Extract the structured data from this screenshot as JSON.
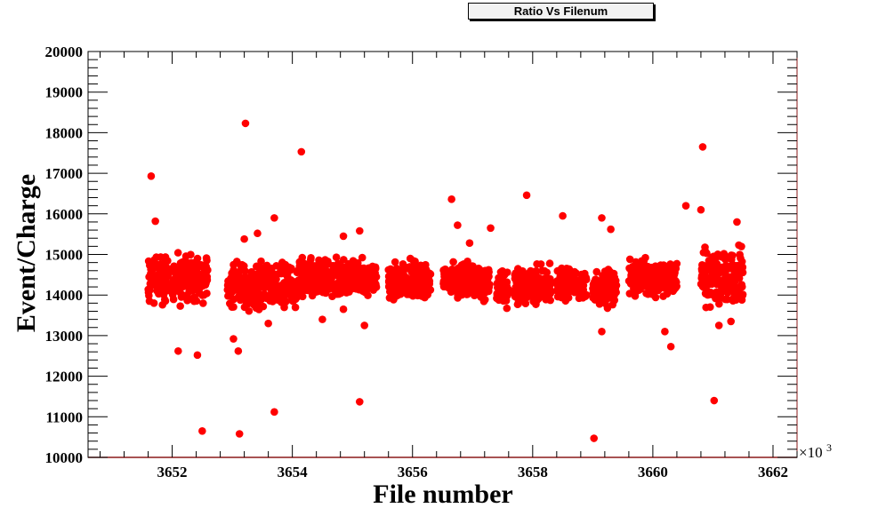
{
  "chart_data": {
    "type": "scatter",
    "title": "Ratio Vs Filenum",
    "xlabel": "File number",
    "ylabel": "Event/Charge",
    "x_multiplier_label": "×10",
    "x_multiplier_exponent": "3",
    "xlim": [
      3650.6,
      3662.4
    ],
    "ylim": [
      10000,
      20000
    ],
    "x_ticks": [
      3652,
      3654,
      3656,
      3658,
      3660,
      3662
    ],
    "x_tick_labels": [
      "3652",
      "3654",
      "3656",
      "3658",
      "3660",
      "3662"
    ],
    "y_ticks": [
      10000,
      11000,
      12000,
      13000,
      14000,
      15000,
      16000,
      17000,
      18000,
      19000,
      20000
    ],
    "y_tick_labels": [
      "10000",
      "11000",
      "12000",
      "13000",
      "14000",
      "15000",
      "16000",
      "17000",
      "18000",
      "19000",
      "20000"
    ],
    "marker_color": "#ff0000",
    "bulk_clusters": [
      {
        "x_range": [
          3651.6,
          3652.6
        ],
        "y_range": [
          13600,
          15200
        ]
      },
      {
        "x_range": [
          3652.9,
          3653.6
        ],
        "y_range": [
          13500,
          15000
        ]
      },
      {
        "x_range": [
          3653.6,
          3654.1
        ],
        "y_range": [
          13500,
          14900
        ]
      },
      {
        "x_range": [
          3654.1,
          3654.9
        ],
        "y_range": [
          13700,
          15100
        ]
      },
      {
        "x_range": [
          3654.9,
          3655.4
        ],
        "y_range": [
          13800,
          15000
        ]
      },
      {
        "x_range": [
          3655.6,
          3656.3
        ],
        "y_range": [
          13700,
          15000
        ]
      },
      {
        "x_range": [
          3656.5,
          3657.3
        ],
        "y_range": [
          13700,
          15000
        ]
      },
      {
        "x_range": [
          3657.4,
          3657.6
        ],
        "y_range": [
          13600,
          14700
        ]
      },
      {
        "x_range": [
          3657.7,
          3658.3
        ],
        "y_range": [
          13600,
          14900
        ]
      },
      {
        "x_range": [
          3658.4,
          3658.9
        ],
        "y_range": [
          13700,
          14800
        ]
      },
      {
        "x_range": [
          3659.0,
          3659.4
        ],
        "y_range": [
          13600,
          14800
        ]
      },
      {
        "x_range": [
          3659.6,
          3660.4
        ],
        "y_range": [
          13800,
          15000
        ]
      },
      {
        "x_range": [
          3660.8,
          3661.5
        ],
        "y_range": [
          13500,
          15400
        ]
      }
    ],
    "outliers": [
      {
        "x": 3651.65,
        "y": 16930
      },
      {
        "x": 3651.72,
        "y": 15820
      },
      {
        "x": 3652.1,
        "y": 12620
      },
      {
        "x": 3652.42,
        "y": 12520
      },
      {
        "x": 3652.5,
        "y": 10650
      },
      {
        "x": 3653.02,
        "y": 12920
      },
      {
        "x": 3653.1,
        "y": 12620
      },
      {
        "x": 3653.12,
        "y": 10580
      },
      {
        "x": 3653.22,
        "y": 18230
      },
      {
        "x": 3653.2,
        "y": 15380
      },
      {
        "x": 3653.42,
        "y": 15520
      },
      {
        "x": 3653.6,
        "y": 13300
      },
      {
        "x": 3653.7,
        "y": 15900
      },
      {
        "x": 3653.7,
        "y": 11120
      },
      {
        "x": 3654.15,
        "y": 17530
      },
      {
        "x": 3654.5,
        "y": 13400
      },
      {
        "x": 3654.85,
        "y": 15450
      },
      {
        "x": 3654.85,
        "y": 13650
      },
      {
        "x": 3655.12,
        "y": 11370
      },
      {
        "x": 3655.12,
        "y": 15580
      },
      {
        "x": 3655.2,
        "y": 13250
      },
      {
        "x": 3656.65,
        "y": 16360
      },
      {
        "x": 3656.75,
        "y": 15720
      },
      {
        "x": 3656.95,
        "y": 15280
      },
      {
        "x": 3657.3,
        "y": 15650
      },
      {
        "x": 3657.9,
        "y": 16460
      },
      {
        "x": 3658.5,
        "y": 15950
      },
      {
        "x": 3659.02,
        "y": 10470
      },
      {
        "x": 3659.15,
        "y": 15900
      },
      {
        "x": 3659.15,
        "y": 13100
      },
      {
        "x": 3659.3,
        "y": 15620
      },
      {
        "x": 3660.2,
        "y": 13100
      },
      {
        "x": 3660.3,
        "y": 12730
      },
      {
        "x": 3660.55,
        "y": 16200
      },
      {
        "x": 3660.83,
        "y": 17650
      },
      {
        "x": 3661.02,
        "y": 11400
      },
      {
        "x": 3660.8,
        "y": 16100
      },
      {
        "x": 3661.4,
        "y": 15800
      },
      {
        "x": 3661.1,
        "y": 13250
      },
      {
        "x": 3661.3,
        "y": 13350
      }
    ]
  }
}
